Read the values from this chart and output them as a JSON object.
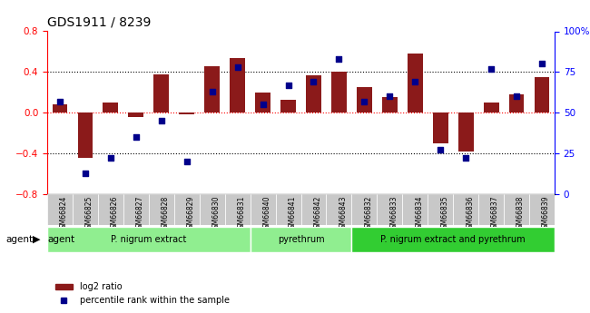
{
  "title": "GDS1911 / 8239",
  "samples": [
    "GSM66824",
    "GSM66825",
    "GSM66826",
    "GSM66827",
    "GSM66828",
    "GSM66829",
    "GSM66830",
    "GSM66831",
    "GSM66840",
    "GSM66841",
    "GSM66842",
    "GSM66843",
    "GSM66832",
    "GSM66833",
    "GSM66834",
    "GSM66835",
    "GSM66836",
    "GSM66837",
    "GSM66838",
    "GSM66839"
  ],
  "log2_ratio": [
    0.08,
    -0.44,
    0.1,
    -0.04,
    0.38,
    -0.02,
    0.46,
    0.54,
    0.2,
    0.13,
    0.37,
    0.4,
    0.25,
    0.15,
    0.58,
    -0.3,
    -0.38,
    0.1,
    0.18,
    0.35
  ],
  "percentile": [
    57,
    13,
    22,
    35,
    45,
    20,
    63,
    78,
    55,
    67,
    69,
    83,
    57,
    60,
    69,
    27,
    22,
    77,
    60,
    80
  ],
  "groups": [
    {
      "label": "P. nigrum extract",
      "start": 0,
      "end": 7,
      "color": "#90EE90"
    },
    {
      "label": "pyrethrum",
      "start": 8,
      "end": 11,
      "color": "#90EE90"
    },
    {
      "label": "P. nigrum extract and pyrethrum",
      "start": 12,
      "end": 19,
      "color": "#32CD32"
    }
  ],
  "bar_color": "#8B1A1A",
  "dot_color": "#00008B",
  "ylim_left": [
    -0.8,
    0.8
  ],
  "ylim_right": [
    0,
    100
  ],
  "yticks_left": [
    -0.8,
    -0.4,
    0.0,
    0.4,
    0.8
  ],
  "yticks_right": [
    0,
    25,
    50,
    75,
    100
  ],
  "hline_dotted_values": [
    -0.4,
    0.4
  ],
  "hline_red_value": 0.0
}
